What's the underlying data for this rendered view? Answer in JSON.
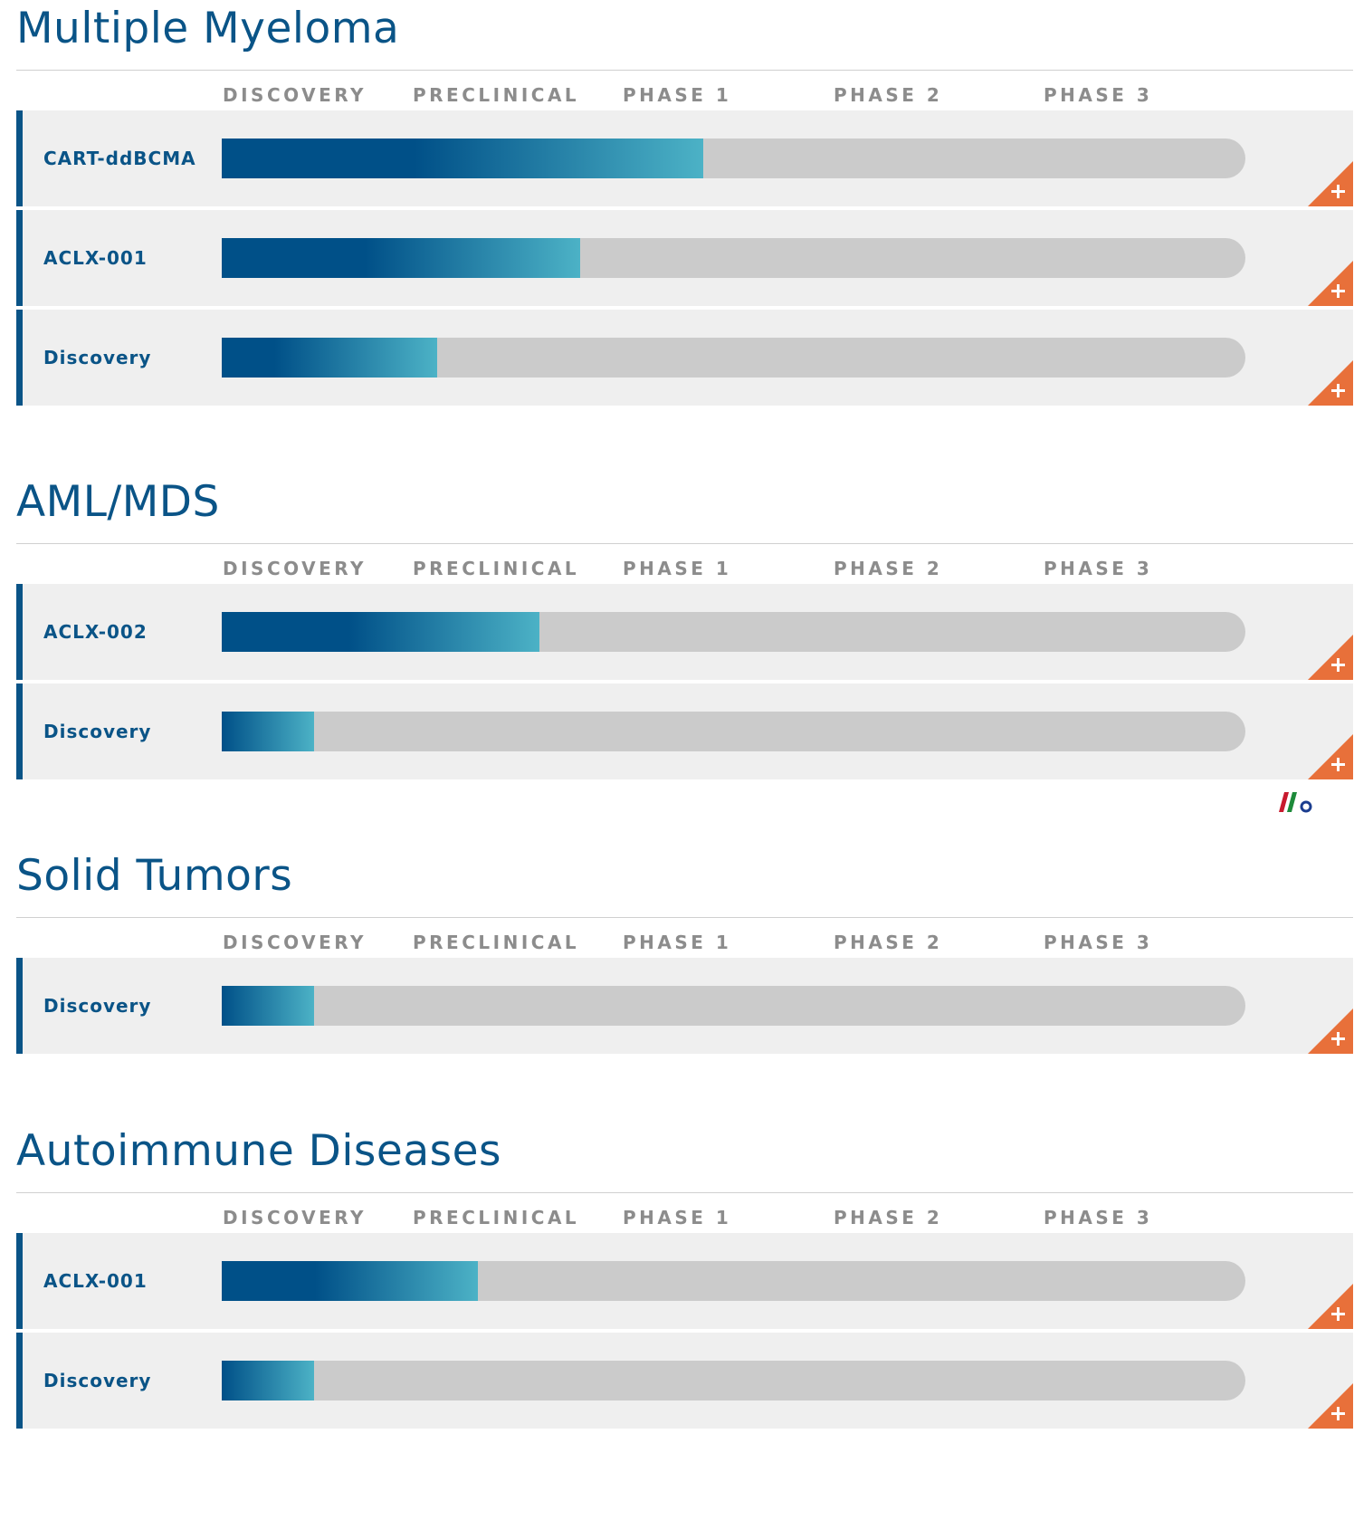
{
  "colors": {
    "title": "#0a5487",
    "label": "#0a5487",
    "header": "#8c8c8c",
    "bar_start": "#005088",
    "bar_end": "#4cb2c6",
    "track": "#cbcbcb",
    "row_bg": "#efefef",
    "accent": "#e8703a"
  },
  "phases": [
    "DISCOVERY",
    "PRECLINICAL",
    "PHASE 1",
    "PHASE 2",
    "PHASE 3"
  ],
  "expand_icon": "plus-icon",
  "chart_data": {
    "type": "bar",
    "orientation": "horizontal",
    "value_unit": "fraction of development track (Discovery to Phase 3)",
    "xlim": [
      0,
      1
    ],
    "sections": [
      {
        "title": "Multiple Myeloma",
        "programs": [
          {
            "name": "CART-ddBCMA",
            "progress": 0.47
          },
          {
            "name": "ACLX-001",
            "progress": 0.35
          },
          {
            "name": "Discovery",
            "progress": 0.21
          }
        ]
      },
      {
        "title": "AML/MDS",
        "programs": [
          {
            "name": "ACLX-002",
            "progress": 0.31
          },
          {
            "name": "Discovery",
            "progress": 0.09
          }
        ]
      },
      {
        "title": "Solid Tumors",
        "programs": [
          {
            "name": "Discovery",
            "progress": 0.09
          }
        ]
      },
      {
        "title": "Autoimmune Diseases",
        "programs": [
          {
            "name": "ACLX-001",
            "progress": 0.25
          },
          {
            "name": "Discovery",
            "progress": 0.09
          }
        ]
      }
    ]
  }
}
